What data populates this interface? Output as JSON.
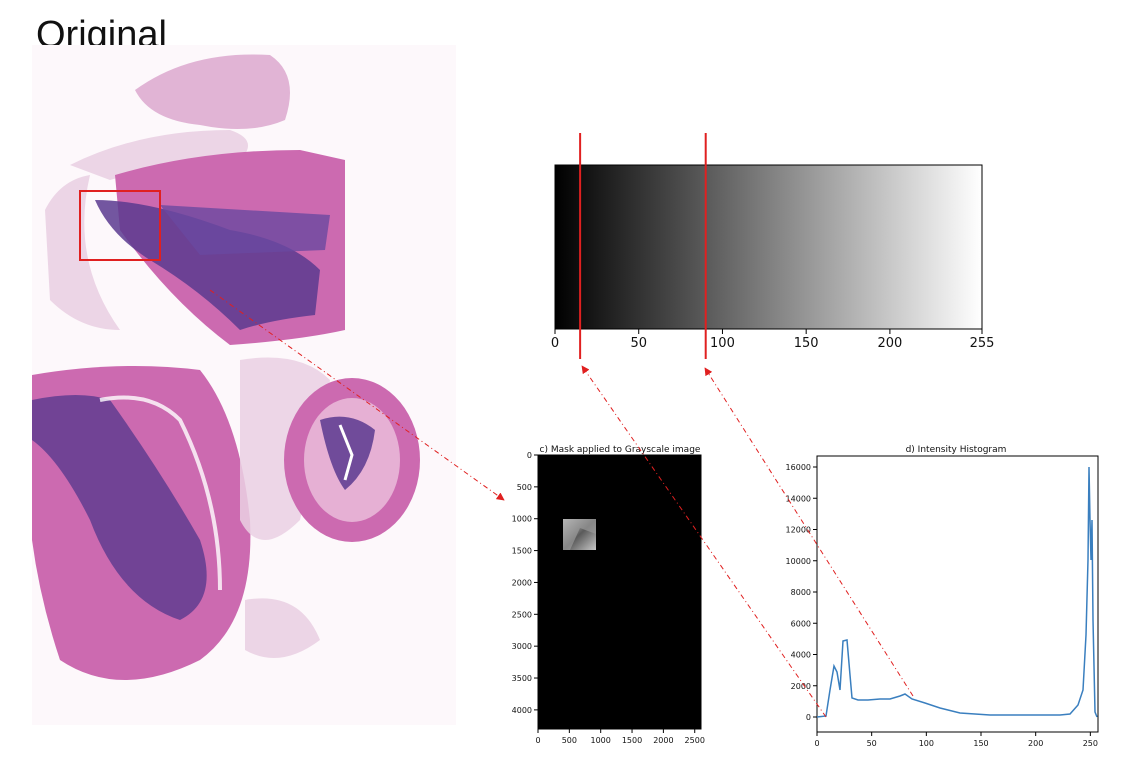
{
  "title": "Original",
  "gradient_axis": {
    "ticks": [
      "0",
      "50",
      "100",
      "150",
      "200",
      "255"
    ],
    "marker_values": [
      15,
      90
    ]
  },
  "mask_panel": {
    "title": "c) Mask applied to Grayscale image",
    "y_ticks": [
      "0",
      "500",
      "1000",
      "1500",
      "2000",
      "2500",
      "3000",
      "3500",
      "4000"
    ],
    "x_ticks": [
      "0",
      "500",
      "1000",
      "1500",
      "2000",
      "2500"
    ]
  },
  "histogram_panel": {
    "title": "d) Intensity Histogram",
    "y_ticks": [
      "0",
      "2000",
      "4000",
      "6000",
      "8000",
      "10000",
      "12000",
      "14000",
      "16000"
    ],
    "x_ticks": [
      "0",
      "50",
      "100",
      "150",
      "200",
      "250"
    ]
  },
  "colors": {
    "annotation_red": "#e02020",
    "histogram_line": "#3a7fbf",
    "tissue_pink": "#c060a8",
    "tissue_purple": "#5a3a8f"
  }
}
